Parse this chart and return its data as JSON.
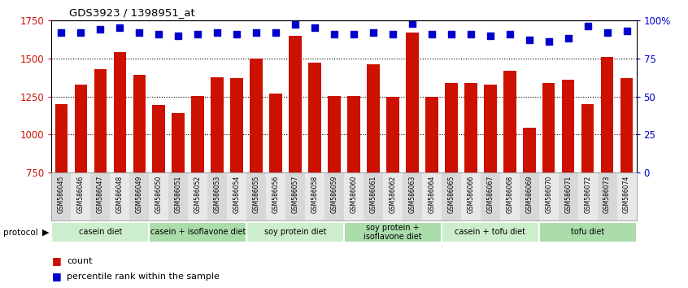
{
  "title": "GDS3923 / 1398951_at",
  "samples": [
    "GSM586045",
    "GSM586046",
    "GSM586047",
    "GSM586048",
    "GSM586049",
    "GSM586050",
    "GSM586051",
    "GSM586052",
    "GSM586053",
    "GSM586054",
    "GSM586055",
    "GSM586056",
    "GSM586057",
    "GSM586058",
    "GSM586059",
    "GSM586060",
    "GSM586061",
    "GSM586062",
    "GSM586063",
    "GSM586064",
    "GSM586065",
    "GSM586066",
    "GSM586067",
    "GSM586068",
    "GSM586069",
    "GSM586070",
    "GSM586071",
    "GSM586072",
    "GSM586073",
    "GSM586074"
  ],
  "counts": [
    1200,
    1330,
    1430,
    1540,
    1390,
    1195,
    1140,
    1255,
    1375,
    1370,
    1500,
    1270,
    1650,
    1470,
    1255,
    1255,
    1460,
    1250,
    1670,
    1250,
    1340,
    1340,
    1330,
    1420,
    1045,
    1340,
    1360,
    1200,
    1510,
    1370
  ],
  "percentile_ranks": [
    92,
    92,
    94,
    95,
    92,
    91,
    90,
    91,
    92,
    91,
    92,
    92,
    97,
    95,
    91,
    91,
    92,
    91,
    98,
    91,
    91,
    91,
    90,
    91,
    87,
    86,
    88,
    96,
    92,
    93
  ],
  "groups": [
    {
      "label": "casein diet",
      "start": 0,
      "end": 5,
      "color": "#cceecc"
    },
    {
      "label": "casein + isoflavone diet",
      "start": 5,
      "end": 10,
      "color": "#aaddaa"
    },
    {
      "label": "soy protein diet",
      "start": 10,
      "end": 15,
      "color": "#cceecc"
    },
    {
      "label": "soy protein +\nisoflavone diet",
      "start": 15,
      "end": 20,
      "color": "#aaddaa"
    },
    {
      "label": "casein + tofu diet",
      "start": 20,
      "end": 25,
      "color": "#cceecc"
    },
    {
      "label": "tofu diet",
      "start": 25,
      "end": 30,
      "color": "#aaddaa"
    }
  ],
  "bar_color": "#cc1100",
  "dot_color": "#0000cc",
  "ylim_left": [
    750,
    1750
  ],
  "ylim_right": [
    0,
    100
  ],
  "yticks_left": [
    750,
    1000,
    1250,
    1500,
    1750
  ],
  "yticks_right": [
    0,
    25,
    50,
    75,
    100
  ],
  "right_tick_labels": [
    "0",
    "25",
    "50",
    "75",
    "100%"
  ],
  "grid_lines": [
    1000,
    1250,
    1500
  ],
  "bar_width": 0.65,
  "dot_size": 40,
  "label_fontsize": 5.5,
  "group_fontsize": 7.0
}
